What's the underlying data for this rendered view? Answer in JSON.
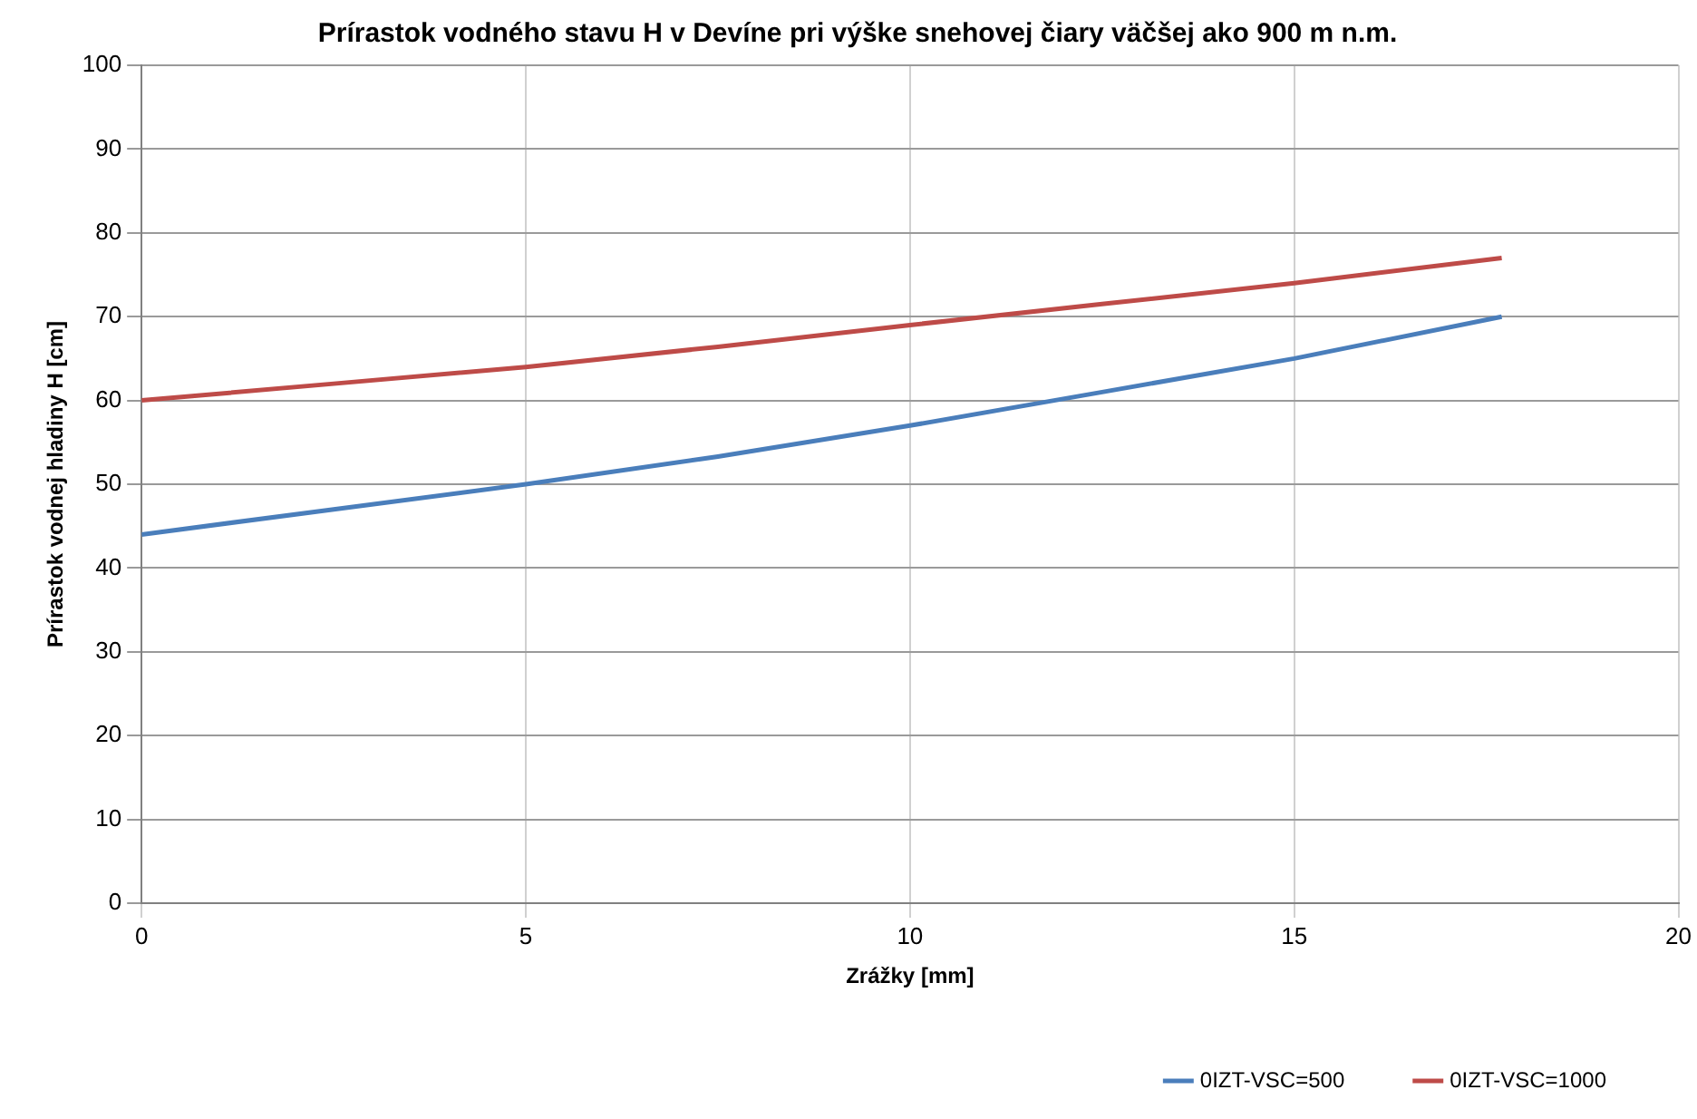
{
  "chart_data": {
    "type": "line",
    "title": "Prírastok vodného stavu H v Devíne pri výške snehovej čiary väčšej ako 900 m n.m.",
    "xlabel": "Zrážky [mm]",
    "ylabel": "Prírastok vodnej hladiny H [cm]",
    "x": [
      0,
      2.5,
      5,
      7.5,
      10,
      12.5,
      15,
      17.7
    ],
    "series": [
      {
        "name": "0IZT-VSC=500",
        "color": "#4a7ebb",
        "values": [
          44,
          47,
          50,
          53.3,
          57,
          61,
          65,
          70
        ]
      },
      {
        "name": "0IZT-VSC=1000",
        "color": "#be4b48",
        "values": [
          60,
          62,
          64,
          66.4,
          69,
          71.5,
          74,
          77
        ]
      }
    ],
    "xlim": [
      0,
      20
    ],
    "xticks": [
      0,
      5,
      10,
      15,
      20
    ],
    "ylim": [
      0,
      100
    ],
    "yticks": [
      0,
      10,
      20,
      30,
      40,
      50,
      60,
      70,
      80,
      90,
      100
    ],
    "grid": true,
    "legend": "bottom",
    "marker": "none",
    "line_style": "solid"
  }
}
